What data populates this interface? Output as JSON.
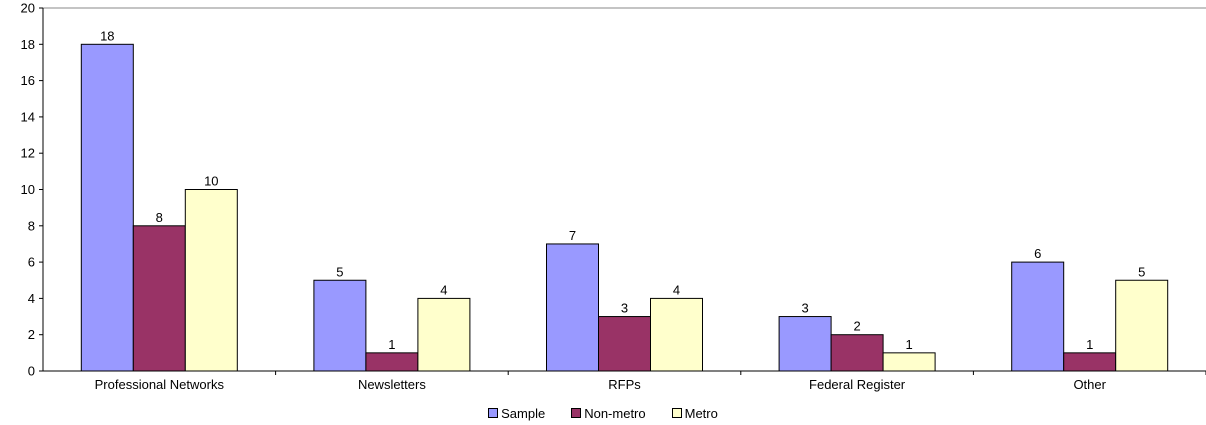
{
  "chart_data": {
    "type": "bar",
    "categories": [
      "Professional Networks",
      "Newsletters",
      "RFPs",
      "Federal Register",
      "Other"
    ],
    "series": [
      {
        "name": "Sample",
        "values": [
          18,
          5,
          7,
          3,
          6
        ],
        "color": "#9999ff"
      },
      {
        "name": "Non-metro",
        "values": [
          8,
          1,
          3,
          2,
          1
        ],
        "color": "#993366"
      },
      {
        "name": "Metro",
        "values": [
          10,
          4,
          4,
          1,
          5
        ],
        "color": "#ffffcc"
      }
    ],
    "ylim": [
      0,
      20
    ],
    "yticks": [
      "0",
      "2",
      "4",
      "6",
      "8",
      "10",
      "12",
      "14",
      "16",
      "18",
      "20"
    ],
    "grid": false,
    "legend": "bottom"
  }
}
